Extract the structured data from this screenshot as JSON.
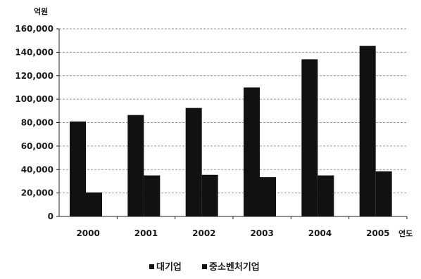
{
  "chart_data": {
    "type": "bar",
    "title": "",
    "ylabel": "억원",
    "xlabel": "연도",
    "categories": [
      "2000",
      "2001",
      "2002",
      "2003",
      "2004",
      "2005"
    ],
    "series": [
      {
        "name": "대기업",
        "values": [
          81000,
          86500,
          92500,
          110000,
          134000,
          145500
        ]
      },
      {
        "name": "중소벤처기업",
        "values": [
          20500,
          35000,
          35500,
          33500,
          35000,
          38500
        ]
      }
    ],
    "ylim": [
      0,
      160000
    ],
    "yticks": [
      "0",
      "20,000",
      "40,000",
      "60,000",
      "80,000",
      "100,000",
      "120,000",
      "140,000",
      "160,000"
    ],
    "grid": "dashed",
    "legend": "bottom",
    "bar_color": "#111111",
    "plot_bg": "#ffffff"
  }
}
